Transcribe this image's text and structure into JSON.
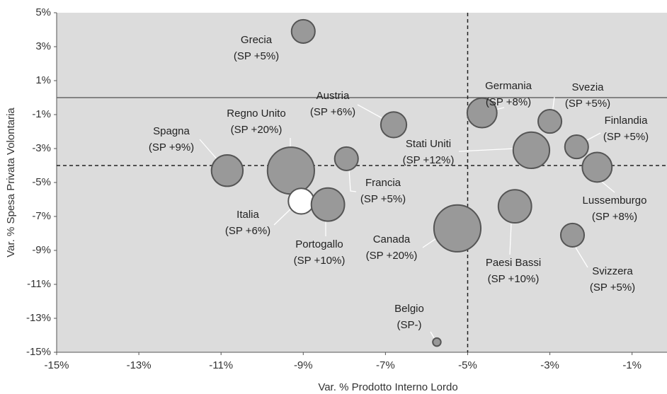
{
  "chart_data": {
    "type": "scatter",
    "xlabel": "Var. % Prodotto Interno Lordo",
    "ylabel": "Var. % Spesa Privata Volontaria",
    "xlim": [
      -15,
      -0.15
    ],
    "ylim": [
      -15,
      5
    ],
    "xticks": [
      {
        "value": -15,
        "label": "-15%"
      },
      {
        "value": -13,
        "label": "-13%"
      },
      {
        "value": -11,
        "label": "-11%"
      },
      {
        "value": -9,
        "label": "-9%"
      },
      {
        "value": -7,
        "label": "-7%"
      },
      {
        "value": -5,
        "label": "-5%"
      },
      {
        "value": -3,
        "label": "-3%"
      },
      {
        "value": -1,
        "label": "-1%"
      }
    ],
    "yticks": [
      {
        "value": 5,
        "label": "5%"
      },
      {
        "value": 3,
        "label": "3%"
      },
      {
        "value": 1,
        "label": "1%"
      },
      {
        "value": -1,
        "label": "-1%"
      },
      {
        "value": -3,
        "label": "-3%"
      },
      {
        "value": -5,
        "label": "-5%"
      },
      {
        "value": -7,
        "label": "-7%"
      },
      {
        "value": -9,
        "label": "-9%"
      },
      {
        "value": -11,
        "label": "-11%"
      },
      {
        "value": -13,
        "label": "-13%"
      },
      {
        "value": -15,
        "label": "-15%"
      }
    ],
    "hlines": [
      {
        "value": 0,
        "style": "solid"
      },
      {
        "value": -4,
        "style": "dashed"
      }
    ],
    "vlines": [
      {
        "value": -5,
        "style": "dashed"
      }
    ],
    "labels": [
      "Grecia",
      "Austria",
      "Germania",
      "Svezia",
      "Finlandia",
      "Stati Uniti",
      "Lussemburgo",
      "Spagna",
      "Regno Unito",
      "Francia",
      "Italia",
      "Portogallo",
      "Canada",
      "Paesi Bassi",
      "Svizzera",
      "Belgio"
    ],
    "annotations": [
      "(SP +5%)",
      "(SP +6%)",
      "(SP +8%)",
      "(SP +5%)",
      "(SP +5%)",
      "(SP +12%)",
      "(SP +8%)",
      "(SP +9%)",
      "(SP +20%)",
      "(SP +5%)",
      "(SP +6%)",
      "(SP +10%)",
      "(SP +20%)",
      "(SP +10%)",
      "(SP +5%)",
      "(SP-)"
    ],
    "x": [
      -9.0,
      -6.8,
      -4.65,
      -3.0,
      -2.35,
      -3.45,
      -1.85,
      -10.85,
      -9.3,
      -7.95,
      -9.05,
      -8.4,
      -5.25,
      -3.85,
      -2.45,
      -5.75
    ],
    "values": [
      3.9,
      -1.6,
      -0.9,
      -1.4,
      -2.9,
      -3.1,
      -4.1,
      -4.3,
      -4.3,
      -3.6,
      -6.1,
      -6.3,
      -7.7,
      -6.4,
      -8.1,
      -14.4
    ],
    "sizes": [
      5,
      6,
      8,
      5,
      5,
      12,
      8,
      9,
      20,
      5,
      6,
      10,
      20,
      10,
      5,
      0.6
    ],
    "color": "#999999",
    "point_colors": [
      "#999999",
      "#999999",
      "#999999",
      "#999999",
      "#999999",
      "#999999",
      "#999999",
      "#999999",
      "#999999",
      "#999999",
      "#ffffff",
      "#999999",
      "#999999",
      "#999999",
      "#999999",
      "#999999"
    ],
    "plot_background": "#dcdcdc"
  }
}
